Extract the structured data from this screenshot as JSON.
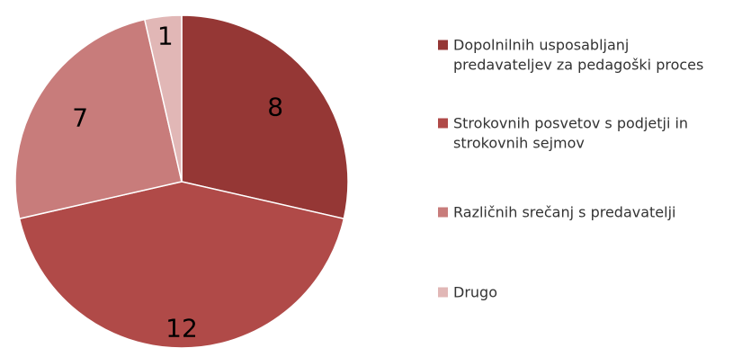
{
  "chart_data": {
    "type": "pie",
    "title": "",
    "slices": [
      {
        "label_lines": [
          "Dopolnilnih usposabljanj",
          "predavateljev za pedagoški proces"
        ],
        "value": 8,
        "color": "#953735"
      },
      {
        "label_lines": [
          "Strokovnih posvetov s podjetji in",
          "strokovnih sejmov"
        ],
        "value": 12,
        "color": "#b04a48"
      },
      {
        "label_lines": [
          "Različnih srečanj s predavatelji"
        ],
        "value": 7,
        "color": "#c87c7b"
      },
      {
        "label_lines": [
          "Drugo"
        ],
        "value": 1,
        "color": "#e1b7b6"
      }
    ],
    "start_angle_deg": 0,
    "direction": "clockwise",
    "data_labels": true,
    "legend_position": "right"
  }
}
